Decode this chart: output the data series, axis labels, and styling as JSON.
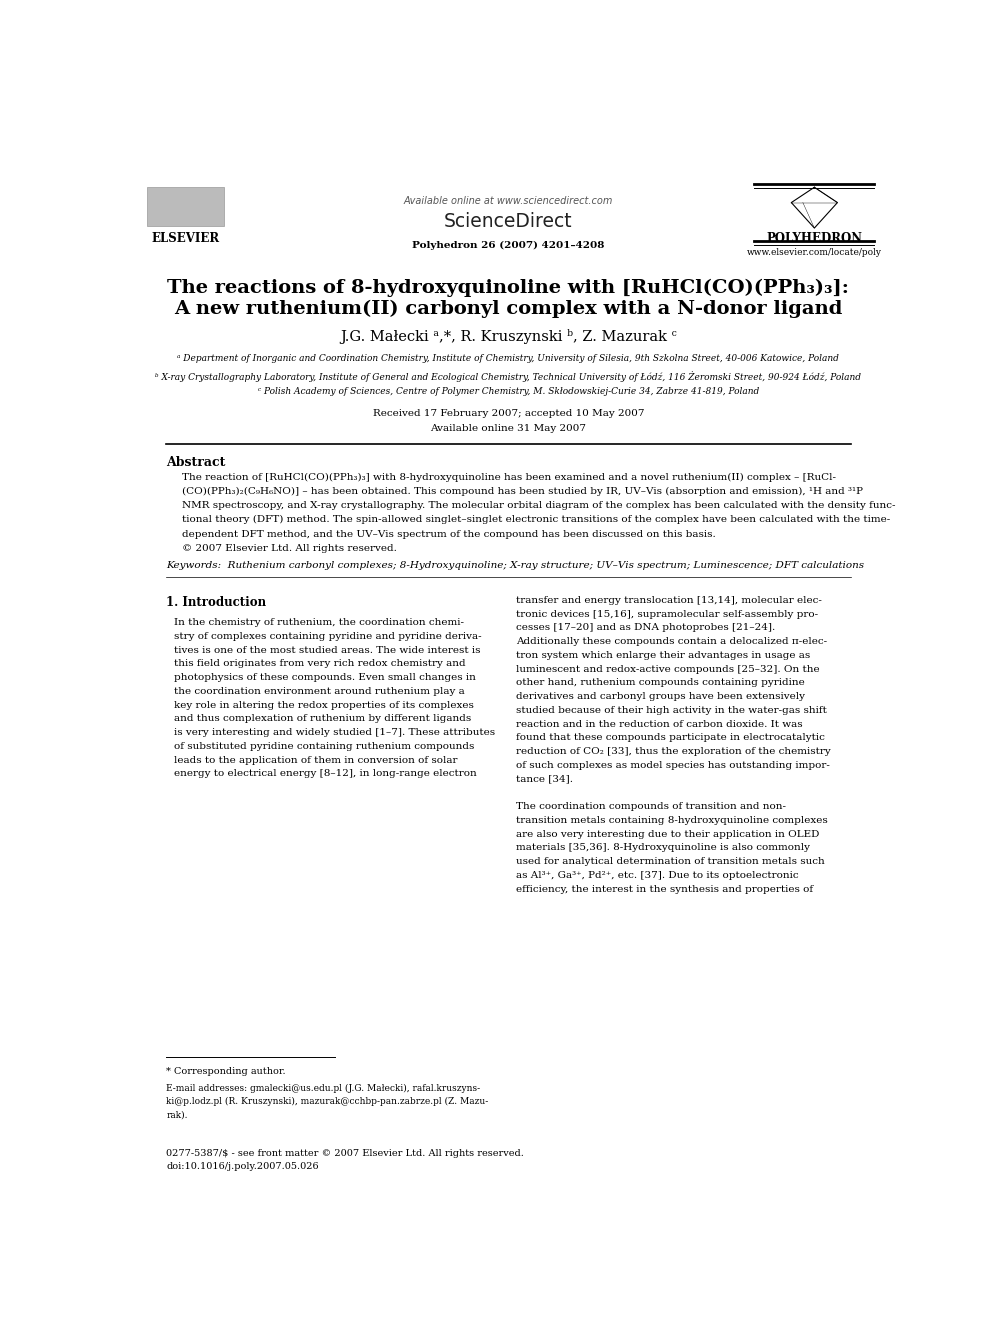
{
  "background_color": "#ffffff",
  "page_width": 9.92,
  "page_height": 13.23,
  "header": {
    "available_online": "Available online at www.sciencedirect.com",
    "sciencedirect": "ScienceDirect",
    "journal_info": "Polyhedron 26 (2007) 4201–4208",
    "journal_name": "POLYHEDRON",
    "journal_website": "www.elsevier.com/locate/poly",
    "elsevier": "ELSEVIER"
  },
  "title_line1": "The reactions of 8-hydroxyquinoline with [RuHCl(CO)(PPh₃)₃]:",
  "title_line2": "A new ruthenium(II) carbonyl complex with a N-donor ligand",
  "authors": "J.G. Małecki ᵃ,*, R. Kruszynski ᵇ, Z. Mazurak ᶜ",
  "affiliation_a": "ᵃ Department of Inorganic and Coordination Chemistry, Institute of Chemistry, University of Silesia, 9th Szkolna Street, 40-006 Katowice, Poland",
  "affiliation_b": "ᵇ X-ray Crystallography Laboratory, Institute of General and Ecological Chemistry, Technical University of Łódź, 116 Żeromski Street, 90-924 Łódź, Poland",
  "affiliation_c": "ᶜ Polish Academy of Sciences, Centre of Polymer Chemistry, M. Skłodowskiej-Curie 34, Zabrze 41-819, Poland",
  "received": "Received 17 February 2007; accepted 10 May 2007",
  "available": "Available online 31 May 2007",
  "abstract_title": "Abstract",
  "abstract_text1": "The reaction of [RuHCl(CO)(PPh₃)₃] with 8-hydroxyquinoline has been examined and a novel ruthenium(II) complex – [RuCl-",
  "abstract_text2": "(CO)(PPh₃)₂(C₉H₆NO)] – has been obtained. This compound has been studied by IR, UV–Vis (absorption and emission), ¹H and ³¹P",
  "abstract_text3": "NMR spectroscopy, and X-ray crystallography. The molecular orbital diagram of the complex has been calculated with the density func-",
  "abstract_text4": "tional theory (DFT) method. The spin-allowed singlet–singlet electronic transitions of the complex have been calculated with the time-",
  "abstract_text5": "dependent DFT method, and the UV–Vis spectrum of the compound has been discussed on this basis.",
  "abstract_copyright": "© 2007 Elsevier Ltd. All rights reserved.",
  "keywords": "Keywords:  Ruthenium carbonyl complexes; 8-Hydroxyquinoline; X-ray structure; UV–Vis spectrum; Luminescence; DFT calculations",
  "section1_title": "1. Introduction",
  "col1_lines": [
    "In the chemistry of ruthenium, the coordination chemi-",
    "stry of complexes containing pyridine and pyridine deriva-",
    "tives is one of the most studied areas. The wide interest is",
    "this field originates from very rich redox chemistry and",
    "photophysics of these compounds. Even small changes in",
    "the coordination environment around ruthenium play a",
    "key role in altering the redox properties of its complexes",
    "and thus complexation of ruthenium by different ligands",
    "is very interesting and widely studied [1–7]. These attributes",
    "of substituted pyridine containing ruthenium compounds",
    "leads to the application of them in conversion of solar",
    "energy to electrical energy [8–12], in long-range electron"
  ],
  "col2_lines": [
    "transfer and energy translocation [13,14], molecular elec-",
    "tronic devices [15,16], supramolecular self-assembly pro-",
    "cesses [17–20] and as DNA photoprobes [21–24].",
    "Additionally these compounds contain a delocalized π-elec-",
    "tron system which enlarge their advantages in usage as",
    "luminescent and redox-active compounds [25–32]. On the",
    "other hand, ruthenium compounds containing pyridine",
    "derivatives and carbonyl groups have been extensively",
    "studied because of their high activity in the water-gas shift",
    "reaction and in the reduction of carbon dioxide. It was",
    "found that these compounds participate in electrocatalytic",
    "reduction of CO₂ [33], thus the exploration of the chemistry",
    "of such complexes as model species has outstanding impor-",
    "tance [34].",
    "",
    "The coordination compounds of transition and non-",
    "transition metals containing 8-hydroxyquinoline complexes",
    "are also very interesting due to their application in OLED",
    "materials [35,36]. 8-Hydroxyquinoline is also commonly",
    "used for analytical determination of transition metals such",
    "as Al³⁺, Ga³⁺, Pd²⁺, etc. [37]. Due to its optoelectronic",
    "efficiency, the interest in the synthesis and properties of"
  ],
  "footnote_star": "* Corresponding author.",
  "footnote_email_line1": "E-mail addresses: gmalecki@us.edu.pl (J.G. Małecki), rafal.kruszyns-",
  "footnote_email_line2": "ki@p.lodz.pl (R. Kruszynski), mazurak@cchbp-pan.zabrze.pl (Z. Mazu-",
  "footnote_email_line3": "rak).",
  "footer_line1": "0277-5387/$ - see front matter © 2007 Elsevier Ltd. All rights reserved.",
  "footer_line2": "doi:10.1016/j.poly.2007.05.026"
}
